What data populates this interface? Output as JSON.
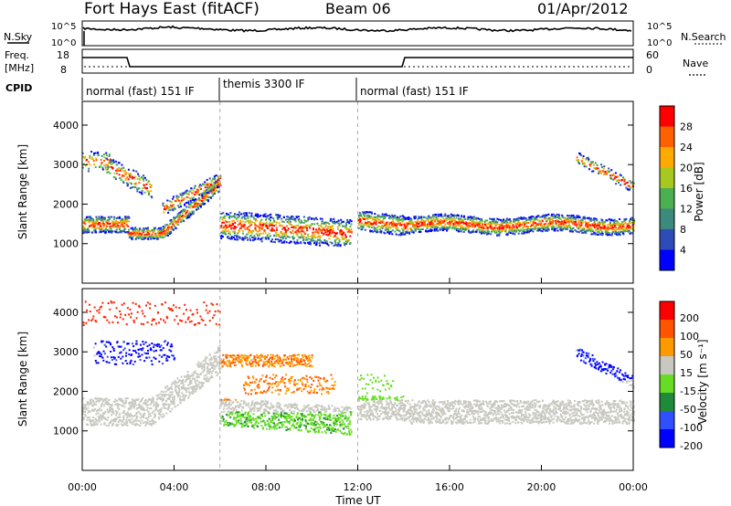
{
  "header": {
    "title": "Fort Hays East (fitACF)",
    "beam": "Beam 06",
    "date": "01/Apr/2012"
  },
  "noise_panel": {
    "left_label": "N.Sky",
    "right_label": "N.Search",
    "left_ticks": [
      "10^5",
      "10^0"
    ],
    "right_ticks": [
      "10^5",
      "10^0"
    ]
  },
  "freq_panel": {
    "left_label_1": "Freq.",
    "left_label_2": "[MHz]",
    "cpid_label": "CPID",
    "right_label": "Nave",
    "left_ticks": [
      "18",
      "8"
    ],
    "right_ticks": [
      "60",
      "0"
    ]
  },
  "cpid_modes": [
    {
      "label": "normal (fast) 151 IF",
      "start_hour": 0,
      "end_hour": 6
    },
    {
      "label": "themis 3300 IF",
      "start_hour": 6,
      "end_hour": 12
    },
    {
      "label": "normal (fast) 151 IF",
      "start_hour": 12,
      "end_hour": 24
    }
  ],
  "chart_data": [
    {
      "type": "heatmap",
      "title": "Power",
      "ylabel": "Slant Range [km]",
      "colorbar_label": "Power [dB]",
      "x_range_hours": [
        0,
        24
      ],
      "ylim": [
        0,
        4600
      ],
      "yticks": [
        1000,
        2000,
        3000,
        4000
      ],
      "colorbar_ticks": [
        "28",
        "24",
        "20",
        "16",
        "12",
        "8",
        "4"
      ],
      "colorbar_colors": [
        "#0000ff",
        "#2e4cb8",
        "#3c8a7c",
        "#4caf50",
        "#a8c820",
        "#ffaa00",
        "#ff6000",
        "#ff0000"
      ]
    },
    {
      "type": "heatmap",
      "title": "Velocity",
      "ylabel": "Slant Range [km]",
      "colorbar_label": "Velocity [m s⁻¹]",
      "x_range_hours": [
        0,
        24
      ],
      "ylim": [
        0,
        4600
      ],
      "yticks": [
        1000,
        2000,
        3000,
        4000
      ],
      "colorbar_ticks": [
        "200",
        "100",
        "50",
        "15",
        "-15",
        "-50",
        "-100",
        "-200"
      ],
      "colorbar_colors": [
        "#0000ff",
        "#3050ff",
        "#1f8a3a",
        "#66dd22",
        "#c8c8c0",
        "#ff9900",
        "#ff5500",
        "#ff0000"
      ]
    }
  ],
  "x_axis": {
    "ticks": [
      "00:00",
      "04:00",
      "08:00",
      "12:00",
      "16:00",
      "20:00",
      "00:00"
    ],
    "label": "Time UT"
  }
}
